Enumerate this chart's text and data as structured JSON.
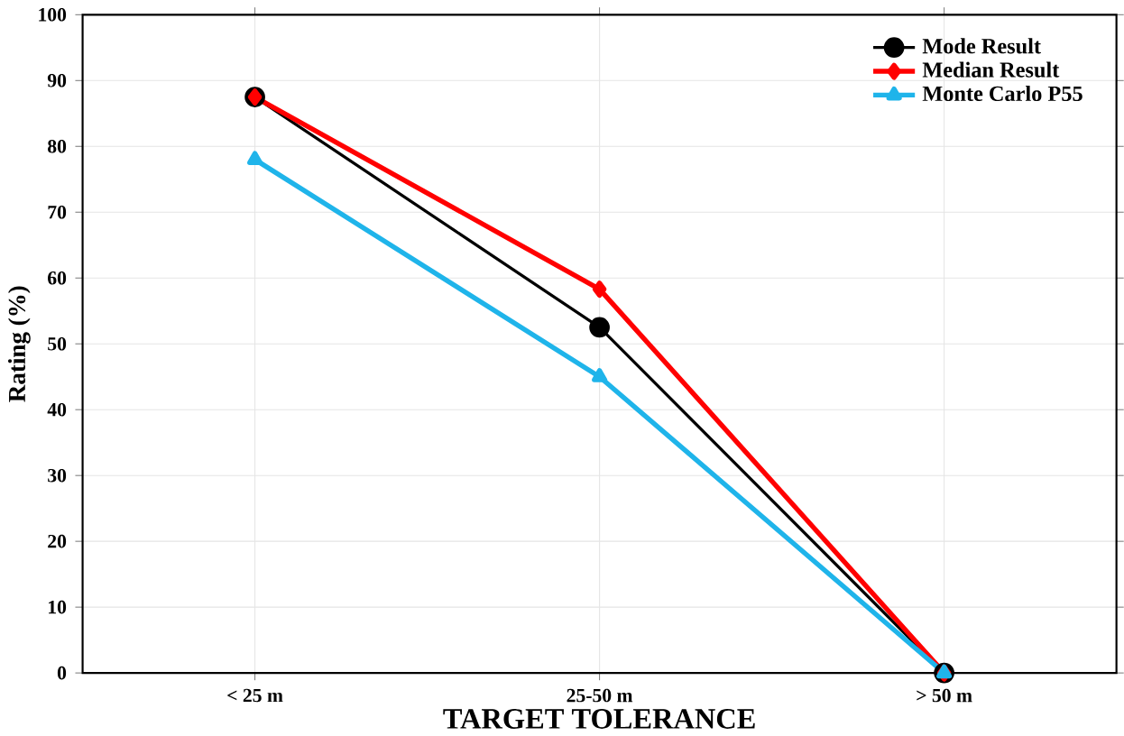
{
  "chart_data": {
    "type": "line",
    "xlabel": "TARGET TOLERANCE",
    "ylabel": "Rating (%)",
    "categories": [
      "< 25 m",
      "25-50 m",
      "> 50 m"
    ],
    "series": [
      {
        "name": "Mode Result",
        "color": "#000000",
        "marker": "circle",
        "values": [
          87.5,
          52.5,
          0
        ]
      },
      {
        "name": "Median Result",
        "color": "#ff0000",
        "marker": "diamond",
        "values": [
          87.5,
          58.3,
          0
        ]
      },
      {
        "name": "Monte Carlo P55",
        "color": "#1fb4ea",
        "marker": "triangle",
        "values": [
          78,
          45,
          0
        ]
      }
    ],
    "ylim": [
      0,
      100
    ],
    "yticks": [
      0,
      10,
      20,
      30,
      40,
      50,
      60,
      70,
      80,
      90,
      100
    ],
    "grid": true,
    "legend": "top right"
  }
}
